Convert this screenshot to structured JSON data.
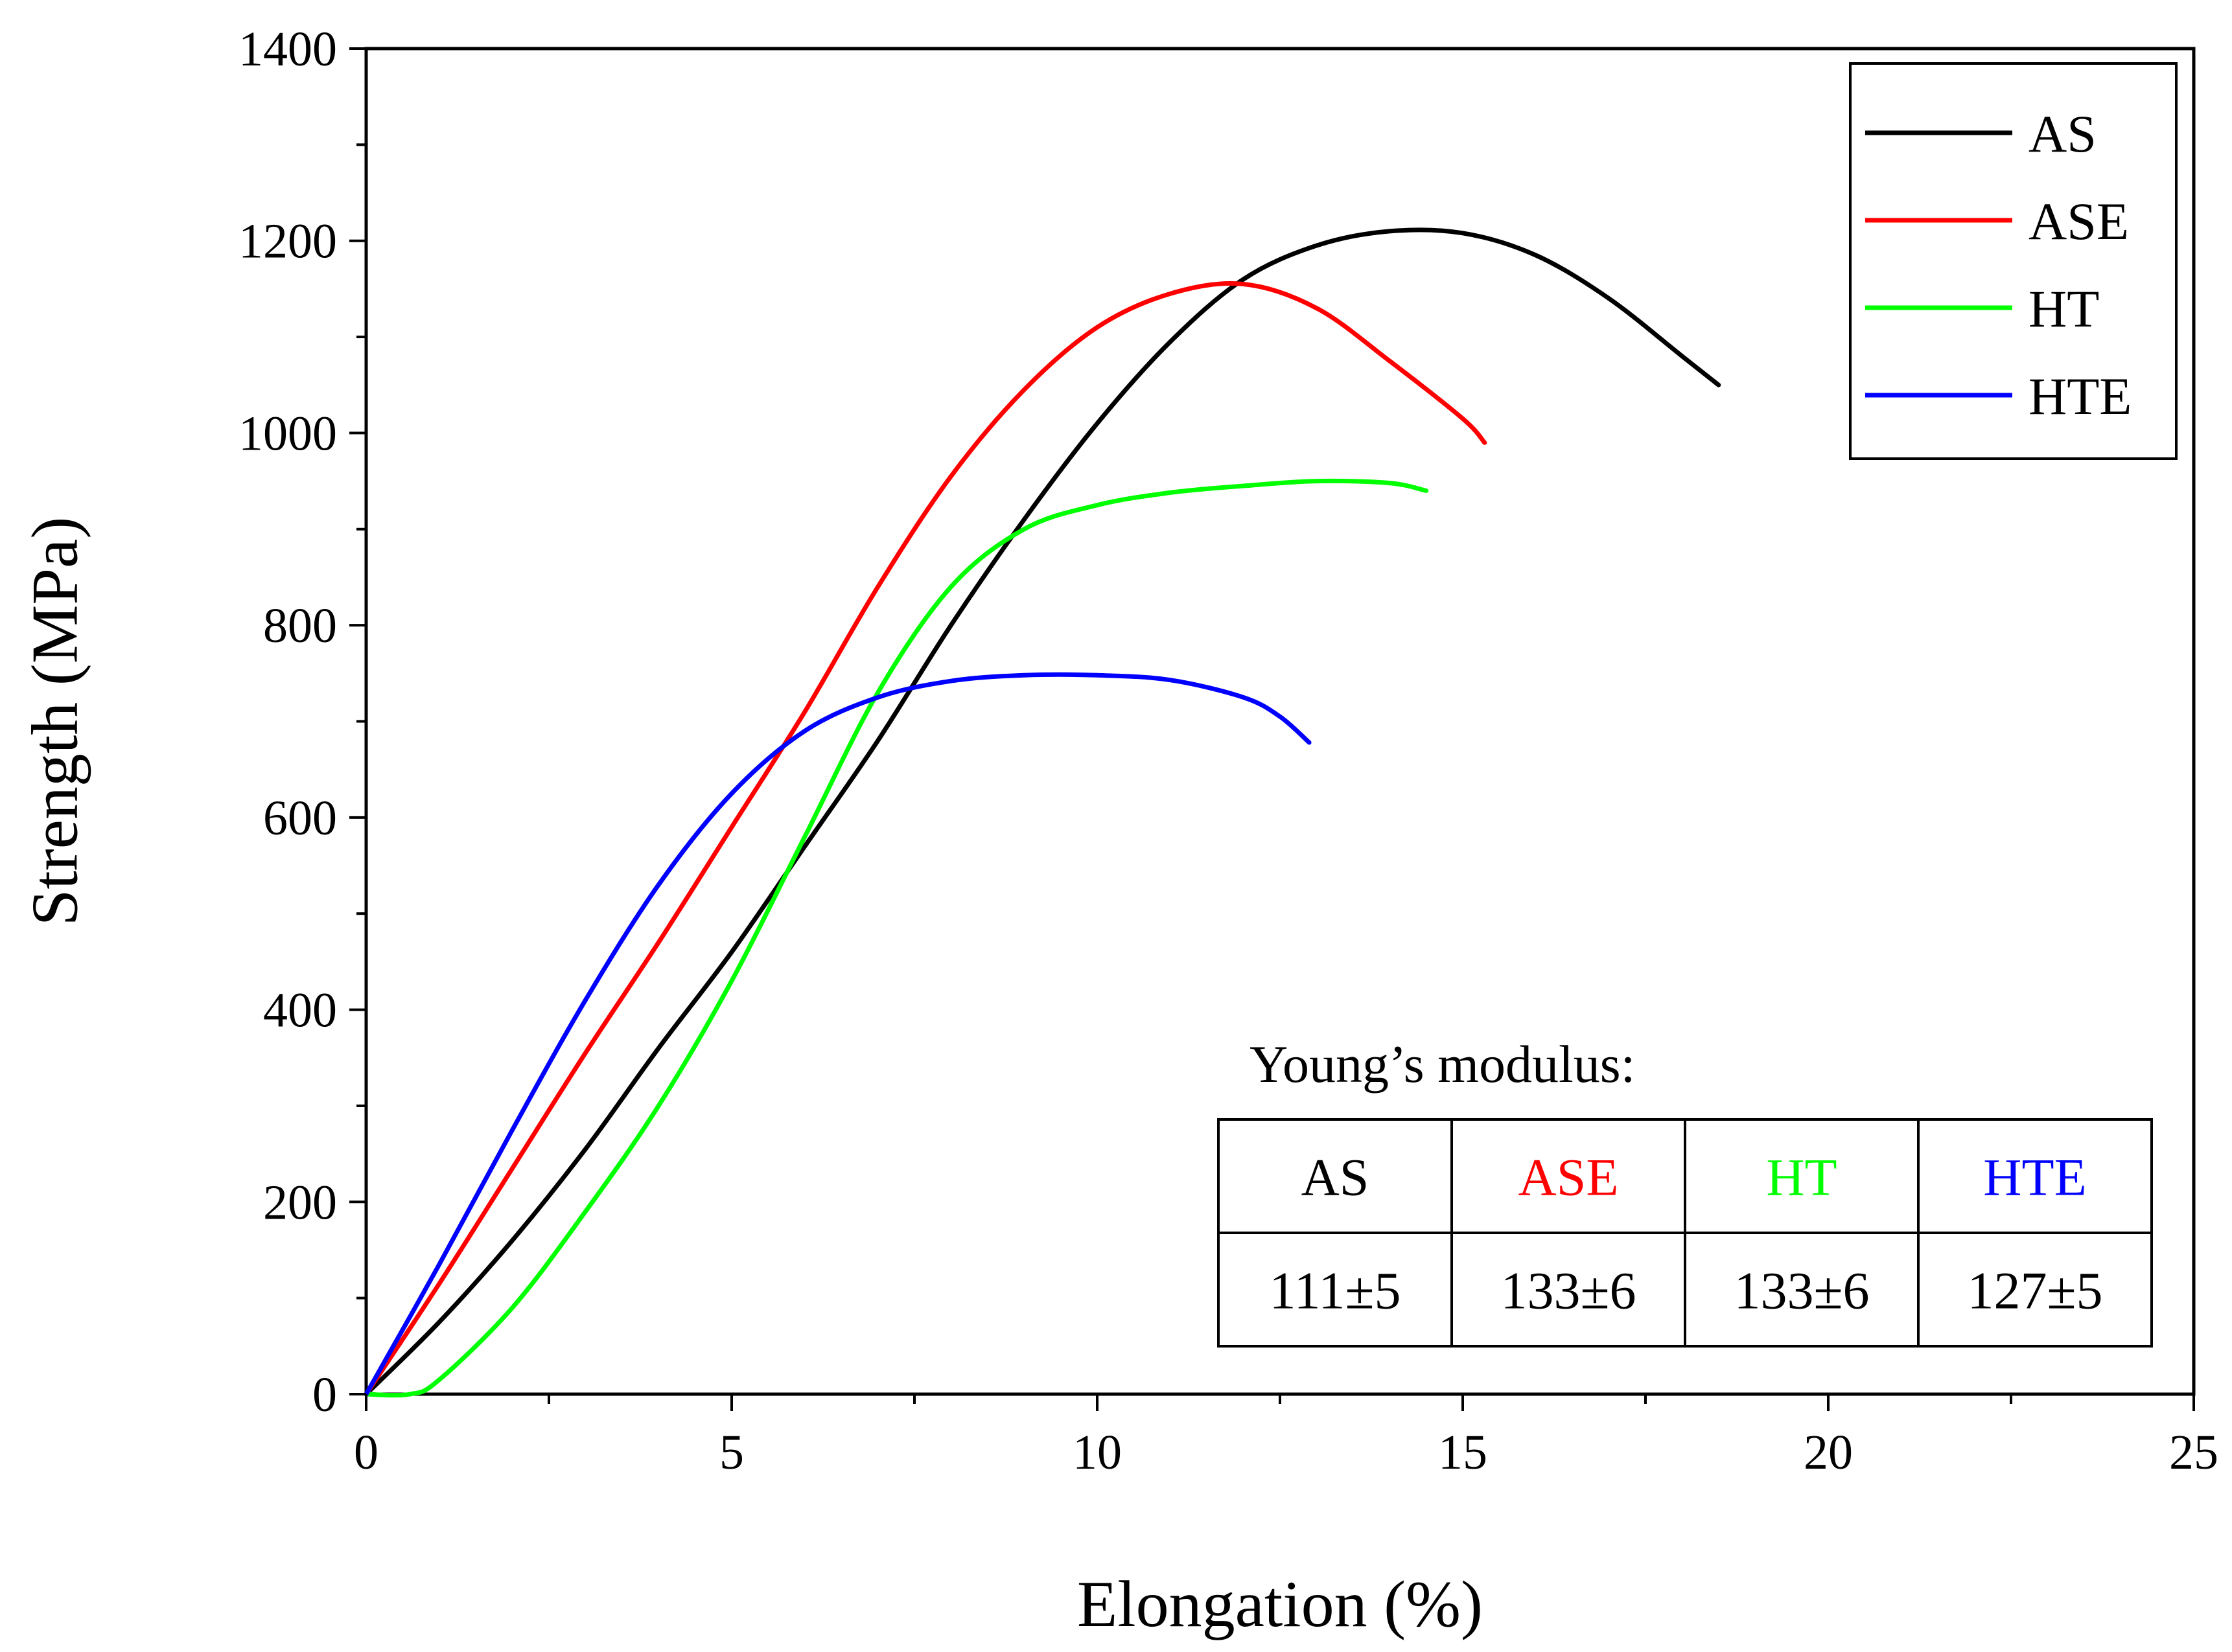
{
  "chart_data": {
    "type": "line",
    "title": "",
    "xlabel": "Elongation (%)",
    "ylabel": "Strength (MPa)",
    "xlim": [
      0,
      25
    ],
    "ylim": [
      0,
      1400
    ],
    "x_ticks": [
      0,
      5,
      10,
      15,
      20,
      25
    ],
    "y_ticks": [
      0,
      200,
      400,
      600,
      800,
      1000,
      1200,
      1400
    ],
    "x_tick_labels": [
      "0",
      "5",
      "10",
      "15",
      "20",
      "25"
    ],
    "y_tick_labels": [
      "0",
      "200",
      "400",
      "600",
      "800",
      "1000",
      "1200",
      "1400"
    ],
    "grid": false,
    "legend_position": "top-right",
    "series": [
      {
        "name": "AS",
        "color": "#000000",
        "x": [
          0,
          1,
          2,
          3,
          4,
          5,
          6,
          7,
          8,
          9,
          10,
          11,
          12,
          13,
          14,
          15,
          16,
          17,
          18,
          18.5
        ],
        "y": [
          0,
          75,
          160,
          255,
          360,
          460,
          570,
          680,
          800,
          910,
          1010,
          1095,
          1160,
          1195,
          1210,
          1208,
          1185,
          1140,
          1080,
          1050
        ]
      },
      {
        "name": "ASE",
        "color": "#ff0000",
        "x": [
          0,
          1,
          2,
          3,
          4,
          5,
          6,
          7,
          8,
          9,
          10,
          11,
          12,
          13,
          14,
          15,
          15.3
        ],
        "y": [
          0,
          115,
          235,
          355,
          470,
          590,
          710,
          840,
          955,
          1045,
          1110,
          1145,
          1155,
          1130,
          1075,
          1015,
          990
        ]
      },
      {
        "name": "HT",
        "color": "#00ff00",
        "x": [
          0,
          0.6,
          1,
          2,
          3,
          4,
          5,
          6,
          7,
          8,
          9,
          10,
          11,
          12,
          13,
          14,
          14.5
        ],
        "y": [
          0,
          0,
          15,
          90,
          190,
          300,
          430,
          580,
          730,
          840,
          900,
          925,
          938,
          945,
          950,
          948,
          940
        ]
      },
      {
        "name": "HTE",
        "color": "#0000ff",
        "x": [
          0,
          1,
          2,
          3,
          4,
          5,
          6,
          7,
          8,
          9,
          10,
          11,
          12,
          12.5,
          12.9
        ],
        "y": [
          0,
          135,
          275,
          410,
          530,
          625,
          690,
          725,
          742,
          748,
          748,
          743,
          725,
          705,
          678
        ]
      }
    ],
    "annotations": {
      "modulus_title": "Young’s modulus:",
      "modulus_table": [
        {
          "label": "AS",
          "value": "111±5",
          "color": "#000000"
        },
        {
          "label": "ASE",
          "value": "133±6",
          "color": "#ff0000"
        },
        {
          "label": "HT",
          "value": "133±6",
          "color": "#00ff00"
        },
        {
          "label": "HTE",
          "value": "127±5",
          "color": "#0000ff"
        }
      ]
    }
  }
}
